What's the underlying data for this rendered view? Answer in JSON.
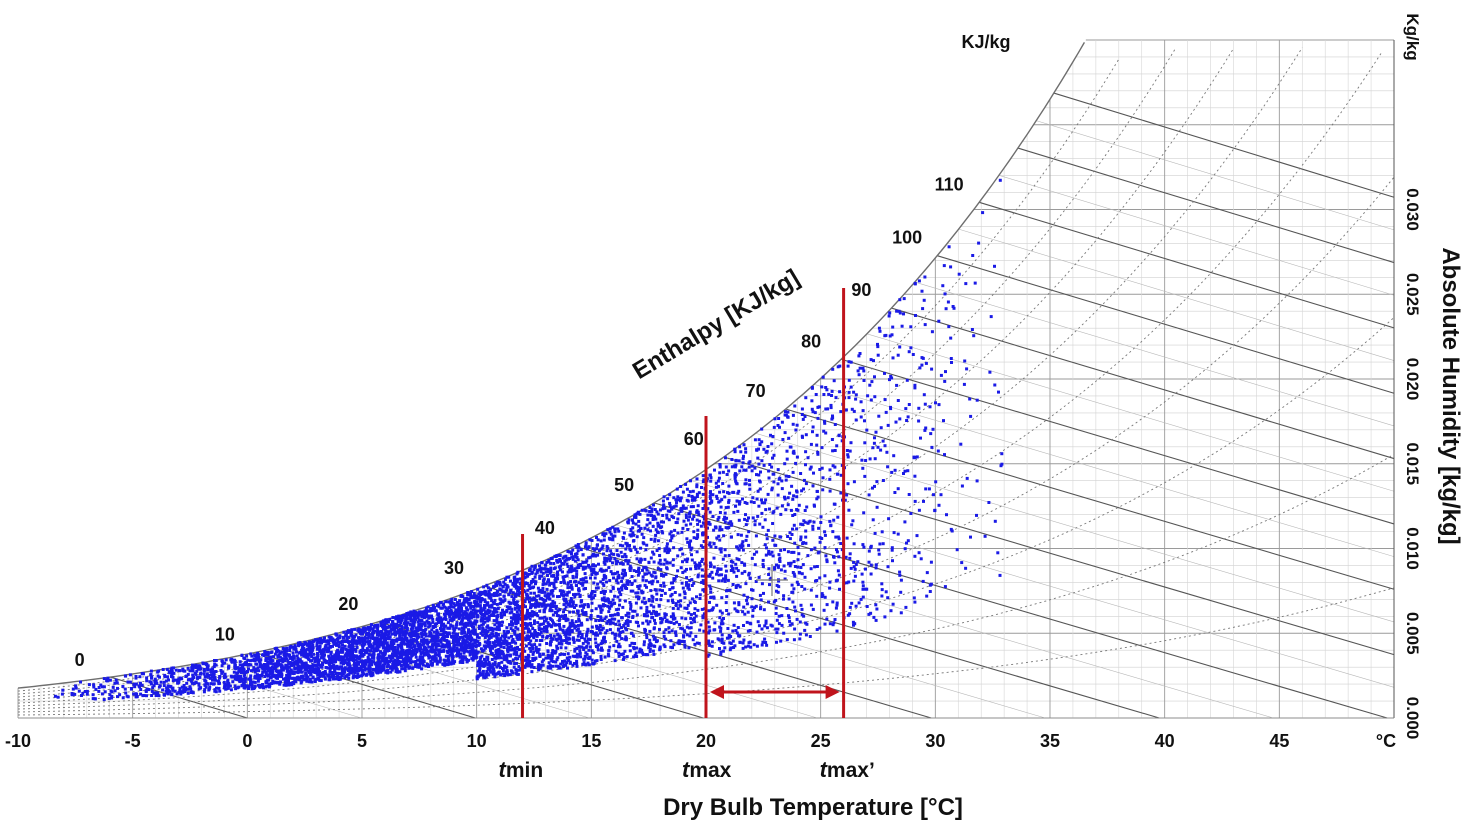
{
  "chart_data": {
    "type": "scatter",
    "title": "",
    "xlabel": "Dry Bulb Temperature [°C]",
    "ylabel": "Absolute Humidity [kg/kg]",
    "enthalpy_axis_label": "Enthalpy [KJ/kg]",
    "enthalpy_unit_label": "KJ/kg",
    "y_unit_label": "Kg/kg",
    "x_unit_label": "°C",
    "xlim": [
      -10,
      50
    ],
    "ylim": [
      0,
      0.04
    ],
    "x_ticks": [
      "-10",
      "-5",
      "0",
      "5",
      "10",
      "15",
      "20",
      "25",
      "30",
      "35",
      "40",
      "45"
    ],
    "y_ticks": [
      "0.000",
      "0.005",
      "0.010",
      "0.015",
      "0.020",
      "0.025",
      "0.030"
    ],
    "enthalpy_ticks": [
      "0",
      "10",
      "20",
      "30",
      "40",
      "50",
      "60",
      "70",
      "80",
      "90",
      "100",
      "110"
    ],
    "grid": true,
    "saturation_curve": true,
    "point_color": "#1a1ae6",
    "marker_color": "#c0141c",
    "vertical_markers": [
      {
        "t_label": "t",
        "sub_label": "min",
        "x": 12
      },
      {
        "t_label": "t",
        "sub_label": "max",
        "x": 20
      },
      {
        "t_label": "t",
        "sub_label": "max’",
        "x": 26
      }
    ],
    "range_arrow": {
      "from": 20,
      "to": 26
    },
    "scatter_generation": {
      "count": 6500,
      "x_range": [
        -8.5,
        33
      ],
      "note": "dense hourly climate samples below saturation curve"
    }
  }
}
